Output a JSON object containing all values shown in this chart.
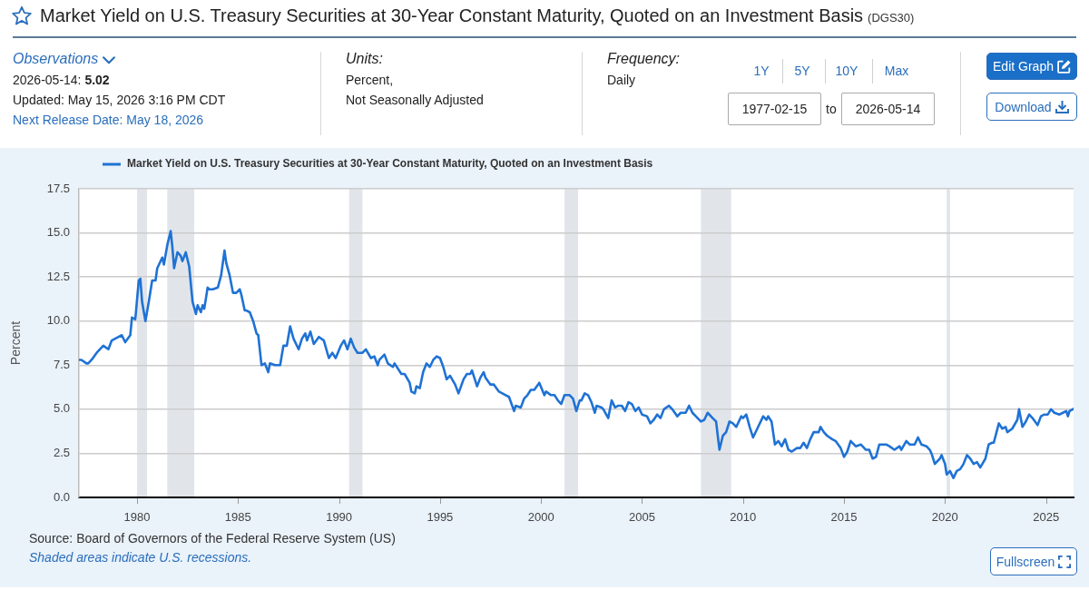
{
  "chart_data": {
    "type": "line",
    "title": "Market Yield on U.S. Treasury Securities at 30-Year Constant Maturity, Quoted on an Investment Basis",
    "subtitle": "(DGS30)",
    "ylabel": "Percent",
    "x": [
      "1977-02-15",
      "1977-04",
      "1977-07",
      "1977-08",
      "1977-10",
      "1978-01",
      "1978-05",
      "1978-08",
      "1978-10",
      "1979-02",
      "1979-04",
      "1979-06",
      "1979-09",
      "1979-10",
      "1979-12",
      "1980-02",
      "1980-03",
      "1980-04",
      "1980-06",
      "1980-08",
      "1980-10",
      "1980-12",
      "1981-01",
      "1981-04",
      "1981-05",
      "1981-07",
      "1981-09",
      "1981-10",
      "1981-11",
      "1982-01",
      "1982-03",
      "1982-04",
      "1982-06",
      "1982-08",
      "1982-10",
      "1982-12",
      "1983-01",
      "1983-03",
      "1983-04",
      "1983-05",
      "1983-07",
      "1983-08",
      "1983-10",
      "1984-01",
      "1984-03",
      "1984-05",
      "1984-06",
      "1984-08",
      "1984-09",
      "1984-10",
      "1984-12",
      "1985-02",
      "1985-03",
      "1985-05",
      "1985-06",
      "1985-08",
      "1985-10",
      "1985-12",
      "1986-01",
      "1986-03",
      "1986-05",
      "1986-07",
      "1986-08",
      "1986-11",
      "1987-02",
      "1987-04",
      "1987-06",
      "1987-08",
      "1987-10",
      "1988-01",
      "1988-03",
      "1988-05",
      "1988-06",
      "1988-08",
      "1988-10",
      "1989-01",
      "1989-04",
      "1989-07",
      "1989-09",
      "1989-11",
      "1990-02",
      "1990-04",
      "1990-06",
      "1990-08",
      "1990-10",
      "1990-12",
      "1991-03",
      "1991-05",
      "1991-08",
      "1991-10",
      "1991-12",
      "1992-01",
      "1992-04",
      "1992-06",
      "1992-09",
      "1992-10",
      "1993-02",
      "1993-04",
      "1993-07",
      "1993-08",
      "1993-10",
      "1993-11",
      "1994-01",
      "1994-03",
      "1994-05",
      "1994-07",
      "1994-09",
      "1994-11",
      "1995-01",
      "1995-03",
      "1995-05",
      "1995-07",
      "1995-10",
      "1995-12",
      "1996-03",
      "1996-05",
      "1996-07",
      "1996-08",
      "1996-11",
      "1997-01",
      "1997-03",
      "1997-04",
      "1997-07",
      "1997-09",
      "1997-12",
      "1998-02",
      "1998-04",
      "1998-06",
      "1998-09",
      "1998-10",
      "1999-01",
      "1999-03",
      "1999-05",
      "1999-07",
      "1999-09",
      "1999-12",
      "2000-03",
      "2000-04",
      "2000-07",
      "2000-09",
      "2000-11",
      "2001-01",
      "2001-03",
      "2001-06",
      "2001-08",
      "2001-10",
      "2001-12",
      "2002-01",
      "2002-03",
      "2002-05",
      "2002-07",
      "2002-09",
      "2002-10",
      "2003-01",
      "2003-02",
      "2003-05",
      "2003-07",
      "2003-09",
      "2003-11",
      "2004-01",
      "2004-03",
      "2004-05",
      "2004-07",
      "2004-09",
      "2004-11",
      "2005-01",
      "2005-04",
      "2005-06",
      "2005-08",
      "2005-10",
      "2005-12",
      "2006-02",
      "2006-05",
      "2006-07",
      "2006-10",
      "2006-12",
      "2007-03",
      "2007-05",
      "2007-07",
      "2007-09",
      "2007-12",
      "2008-02",
      "2008-04",
      "2008-07",
      "2008-09",
      "2008-10",
      "2008-11",
      "2009-01",
      "2009-03",
      "2009-05",
      "2009-07",
      "2009-09",
      "2009-12",
      "2010-01",
      "2010-03",
      "2010-05",
      "2010-07",
      "2010-10",
      "2011-01",
      "2011-03",
      "2011-04",
      "2011-06",
      "2011-08",
      "2011-10",
      "2011-12",
      "2012-02",
      "2012-04",
      "2012-06",
      "2012-09",
      "2012-11",
      "2013-01",
      "2013-03",
      "2013-05",
      "2013-07",
      "2013-10",
      "2013-11",
      "2014-01",
      "2014-03",
      "2014-06",
      "2014-08",
      "2014-11",
      "2015-01",
      "2015-03",
      "2015-05",
      "2015-08",
      "2015-11",
      "2016-02",
      "2016-04",
      "2016-06",
      "2016-08",
      "2016-10",
      "2017-02",
      "2017-04",
      "2017-07",
      "2017-10",
      "2017-11",
      "2018-02",
      "2018-04",
      "2018-07",
      "2018-09",
      "2018-11",
      "2019-02",
      "2019-04",
      "2019-05",
      "2019-07",
      "2019-10",
      "2019-11",
      "2020-01",
      "2020-02",
      "2020-04",
      "2020-06",
      "2020-08",
      "2020-10",
      "2020-12",
      "2021-02",
      "2021-04",
      "2021-06",
      "2021-08",
      "2021-10",
      "2022-01",
      "2022-03",
      "2022-05",
      "2022-06",
      "2022-09",
      "2022-11",
      "2023-01",
      "2023-02",
      "2023-05",
      "2023-08",
      "2023-09",
      "2023-11",
      "2024-01",
      "2024-03",
      "2024-05",
      "2024-08",
      "2024-10",
      "2024-12",
      "2025-02",
      "2025-04",
      "2025-06",
      "2025-09",
      "2025-11",
      "2026-01",
      "2026-02",
      "2026-03",
      "2026-05-14"
    ],
    "series": [
      {
        "name": "Market Yield on U.S. Treasury Securities at 30-Year Constant Maturity, Quoted on an Investment Basis",
        "color": "#1f72d4",
        "values": [
          7.8,
          7.8,
          7.6,
          7.6,
          7.8,
          8.2,
          8.6,
          8.4,
          8.9,
          9.1,
          9.2,
          8.8,
          9.2,
          10.2,
          10.1,
          12.3,
          12.4,
          11.1,
          10.0,
          11.1,
          12.3,
          12.3,
          13.0,
          13.6,
          13.2,
          14.3,
          15.1,
          14.2,
          13.0,
          13.9,
          13.7,
          13.4,
          13.9,
          13.1,
          11.1,
          10.4,
          10.9,
          10.5,
          10.9,
          10.7,
          11.9,
          11.8,
          11.8,
          11.9,
          12.6,
          14.0,
          13.3,
          12.6,
          12.1,
          11.6,
          11.6,
          11.8,
          11.5,
          10.6,
          10.6,
          10.5,
          10.0,
          9.3,
          9.2,
          7.5,
          7.6,
          7.1,
          7.6,
          7.5,
          7.5,
          8.6,
          8.6,
          9.7,
          9.0,
          8.4,
          9.0,
          9.3,
          8.9,
          9.4,
          8.7,
          9.1,
          8.9,
          7.9,
          8.2,
          7.9,
          8.6,
          8.9,
          8.4,
          9.0,
          8.5,
          8.2,
          8.2,
          8.4,
          7.9,
          8.0,
          7.5,
          7.8,
          8.1,
          7.6,
          7.4,
          7.6,
          7.0,
          7.0,
          6.5,
          6.0,
          5.9,
          6.3,
          6.2,
          7.1,
          7.6,
          7.4,
          7.8,
          8.0,
          7.9,
          7.4,
          6.7,
          6.9,
          6.4,
          5.9,
          6.7,
          7.0,
          7.0,
          7.2,
          6.3,
          6.8,
          7.1,
          6.8,
          6.4,
          6.4,
          6.0,
          5.9,
          5.8,
          5.7,
          4.9,
          5.2,
          5.1,
          5.6,
          5.8,
          6.1,
          6.1,
          6.5,
          5.8,
          6.0,
          5.8,
          5.8,
          5.5,
          5.3,
          5.8,
          5.8,
          5.6,
          4.9,
          5.5,
          5.5,
          5.9,
          5.8,
          5.4,
          4.8,
          5.2,
          5.1,
          5.0,
          4.5,
          5.5,
          5.1,
          5.2,
          5.2,
          4.9,
          5.4,
          5.3,
          4.9,
          5.1,
          4.7,
          4.6,
          4.2,
          4.4,
          4.7,
          4.5,
          5.0,
          5.2,
          5.0,
          4.6,
          4.8,
          4.8,
          5.2,
          4.8,
          4.6,
          4.3,
          4.4,
          4.8,
          4.5,
          4.3,
          3.5,
          2.7,
          3.5,
          3.7,
          4.3,
          4.2,
          4.0,
          4.6,
          4.5,
          4.7,
          4.0,
          3.4,
          4.0,
          4.6,
          4.4,
          4.6,
          4.3,
          3.0,
          3.2,
          2.9,
          3.3,
          2.7,
          2.6,
          2.8,
          2.8,
          3.1,
          2.8,
          3.3,
          3.7,
          3.7,
          4.0,
          3.7,
          3.5,
          3.3,
          3.2,
          2.8,
          2.3,
          2.6,
          3.2,
          2.9,
          3.0,
          2.7,
          2.7,
          2.2,
          2.3,
          3.0,
          3.0,
          2.9,
          2.7,
          2.9,
          2.7,
          3.2,
          3.0,
          3.0,
          3.4,
          3.0,
          2.9,
          2.7,
          2.5,
          1.9,
          2.2,
          2.4,
          1.9,
          1.3,
          1.5,
          1.1,
          1.5,
          1.6,
          1.9,
          2.4,
          2.2,
          1.9,
          2.0,
          1.7,
          2.2,
          3.0,
          3.1,
          3.1,
          4.2,
          3.9,
          4.0,
          3.7,
          3.9,
          4.4,
          5.0,
          4.0,
          4.3,
          4.7,
          4.5,
          4.1,
          4.6,
          4.7,
          4.7,
          5.0,
          4.8,
          4.7,
          4.8,
          4.9,
          4.6,
          4.9,
          5.02
        ]
      }
    ],
    "xlim": [
      "1977-02-15",
      "2026-05-14"
    ],
    "xticks": [
      "1980",
      "1985",
      "1990",
      "1995",
      "2000",
      "2005",
      "2010",
      "2015",
      "2020",
      "2025"
    ],
    "ylim": [
      0,
      17.5
    ],
    "yticks": [
      {
        "value": 0,
        "label": "0.0"
      },
      2.5,
      {
        "value": 5,
        "label": "5.0"
      },
      7.5,
      {
        "value": 10,
        "label": "10.0"
      },
      12.5,
      {
        "value": 15,
        "label": "15.0"
      },
      17.5
    ],
    "bands": [
      {
        "axis": "x",
        "from": "1980-01",
        "to": "1980-07",
        "color": "#e1e5ea"
      },
      {
        "axis": "x",
        "from": "1981-07",
        "to": "1982-11",
        "color": "#e1e5ea"
      },
      {
        "axis": "x",
        "from": "1990-07",
        "to": "1991-03",
        "color": "#e1e5ea"
      },
      {
        "axis": "x",
        "from": "2001-03",
        "to": "2001-11",
        "color": "#e1e5ea"
      },
      {
        "axis": "x",
        "from": "2007-12",
        "to": "2009-06",
        "color": "#e1e5ea"
      },
      {
        "axis": "x",
        "from": "2020-02",
        "to": "2020-04",
        "color": "#e1e5ea"
      }
    ],
    "grid": "y",
    "legend": "top left",
    "marker": "none",
    "annotations": [
      "Observations",
      "2026-05-14: 5.02",
      "Updated: May 15, 2026 3:16 PM CDT",
      "Next Release Date: May 18, 2026",
      "Units:",
      "Percent,",
      "Not Seasonally Adjusted",
      "Frequency:",
      "Daily",
      "1Y",
      "5Y",
      "10Y",
      "Max",
      "1977-02-15",
      "to",
      "2026-05-14",
      "Edit Graph",
      "Download",
      "Source: Board of Governors of the Federal Reserve System (US)",
      "Shaded areas indicate U.S. recessions.",
      "Fullscreen"
    ]
  }
}
